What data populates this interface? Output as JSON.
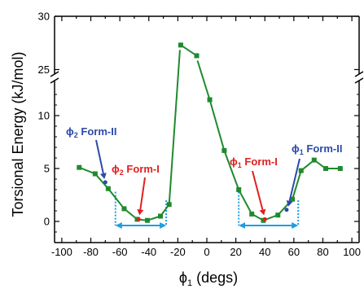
{
  "chart_data": {
    "type": "line",
    "xlabel": "ϕ",
    "xlabel_sub": "1",
    "xlabel_unit": " (degs)",
    "ylabel": "Torsional Energy (kJ/mol)",
    "xlim": [
      -105,
      105
    ],
    "x_ticks": [
      -100,
      -90,
      -80,
      -70,
      -60,
      -50,
      -40,
      -30,
      -20,
      -10,
      0,
      10,
      20,
      30,
      40,
      50,
      60,
      70,
      80,
      90,
      100
    ],
    "x_tick_labels": [
      "-100",
      "-80",
      "-60",
      "-40",
      "-20",
      "0",
      "20",
      "40",
      "60",
      "80",
      "100"
    ],
    "y_lower_range": [
      -2,
      13
    ],
    "y_lower_ticks": [
      0,
      5,
      10
    ],
    "y_upper_ticks": [
      25,
      30
    ],
    "y_axis_break": true,
    "grid": false,
    "colors": {
      "line": "#1f8a2e",
      "marker": "#1f8a2e",
      "form_i": "#e02020",
      "form_ii": "#2c4aa8",
      "bracket": "#1e9ee0"
    },
    "series": [
      {
        "x": [
          -88,
          -77,
          -68,
          -57,
          -48,
          -41,
          -32,
          -26
        ],
        "y": [
          5.1,
          4.5,
          3.1,
          1.2,
          0.2,
          0.1,
          0.5,
          1.6
        ]
      },
      {
        "x": [
          -18,
          -7
        ],
        "y": [
          27.3,
          26.3
        ]
      },
      {
        "x": [
          2,
          12,
          22,
          31,
          39,
          49,
          59,
          65,
          74,
          82,
          92
        ],
        "y": [
          11.5,
          6.7,
          3.0,
          0.7,
          0.1,
          0.6,
          2.1,
          4.8,
          5.8,
          5.0,
          5.0
        ]
      }
    ],
    "conformers": [
      {
        "label_main": "ϕ",
        "label_sub": "2",
        "label_tail": " Form-II",
        "x": -70,
        "y": 3.7,
        "color_key": "form_ii"
      },
      {
        "label_main": "ϕ",
        "label_sub": "2",
        "label_tail": " Form-I",
        "x": -47,
        "y": 0.2,
        "color_key": "form_i"
      },
      {
        "label_main": "ϕ",
        "label_sub": "1",
        "label_tail": " Form-I",
        "x": 40,
        "y": 0.2,
        "color_key": "form_i"
      },
      {
        "label_main": "ϕ",
        "label_sub": "1",
        "label_tail": " Form-II",
        "x": 55,
        "y": 1.1,
        "color_key": "form_ii"
      }
    ],
    "ranges": [
      {
        "x_start": -63,
        "x_end": -28
      },
      {
        "x_start": 22,
        "x_end": 63
      }
    ]
  }
}
